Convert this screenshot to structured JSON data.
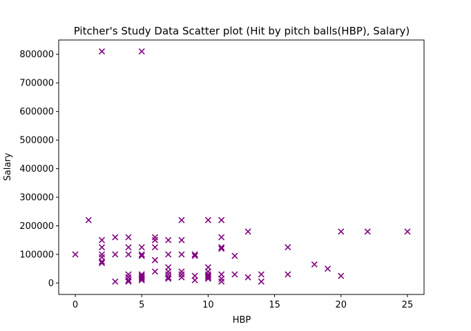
{
  "chart_data": {
    "type": "scatter",
    "title": "Pitcher's Study Data Scatter plot (Hit by pitch balls(HBP), Salary)",
    "xlabel": "HBP",
    "ylabel": "Salary",
    "xlim": [
      -1.25,
      26.25
    ],
    "ylim": [
      -40000,
      850000
    ],
    "x_ticks": [
      0,
      5,
      10,
      15,
      20,
      25
    ],
    "y_ticks": [
      0,
      100000,
      200000,
      300000,
      400000,
      500000,
      600000,
      700000,
      800000
    ],
    "x_tick_labels": [
      "0",
      "5",
      "10",
      "15",
      "20",
      "25"
    ],
    "y_tick_labels": [
      "0",
      "100000",
      "200000",
      "300000",
      "400000",
      "500000",
      "600000",
      "700000",
      "800000"
    ],
    "marker": "x",
    "color": "#800080",
    "grid": false,
    "points": [
      [
        0,
        100000
      ],
      [
        1,
        220000
      ],
      [
        2,
        810000
      ],
      [
        2,
        150000
      ],
      [
        2,
        125000
      ],
      [
        2,
        100000
      ],
      [
        2,
        90000
      ],
      [
        2,
        75000
      ],
      [
        2,
        70000
      ],
      [
        3,
        160000
      ],
      [
        3,
        100000
      ],
      [
        3,
        5000
      ],
      [
        4,
        160000
      ],
      [
        4,
        125000
      ],
      [
        4,
        100000
      ],
      [
        4,
        30000
      ],
      [
        4,
        20000
      ],
      [
        4,
        10000
      ],
      [
        4,
        5000
      ],
      [
        5,
        810000
      ],
      [
        5,
        125000
      ],
      [
        5,
        100000
      ],
      [
        5,
        95000
      ],
      [
        5,
        30000
      ],
      [
        5,
        25000
      ],
      [
        5,
        20000
      ],
      [
        5,
        15000
      ],
      [
        5,
        10000
      ],
      [
        6,
        160000
      ],
      [
        6,
        150000
      ],
      [
        6,
        125000
      ],
      [
        6,
        80000
      ],
      [
        6,
        40000
      ],
      [
        7,
        150000
      ],
      [
        7,
        100000
      ],
      [
        7,
        55000
      ],
      [
        7,
        40000
      ],
      [
        7,
        30000
      ],
      [
        7,
        20000
      ],
      [
        7,
        15000
      ],
      [
        8,
        220000
      ],
      [
        8,
        150000
      ],
      [
        8,
        100000
      ],
      [
        8,
        40000
      ],
      [
        8,
        30000
      ],
      [
        8,
        20000
      ],
      [
        9,
        100000
      ],
      [
        9,
        95000
      ],
      [
        9,
        25000
      ],
      [
        9,
        10000
      ],
      [
        10,
        220000
      ],
      [
        10,
        55000
      ],
      [
        10,
        40000
      ],
      [
        10,
        30000
      ],
      [
        10,
        25000
      ],
      [
        10,
        20000
      ],
      [
        10,
        15000
      ],
      [
        11,
        220000
      ],
      [
        11,
        160000
      ],
      [
        11,
        125000
      ],
      [
        11,
        120000
      ],
      [
        11,
        30000
      ],
      [
        11,
        15000
      ],
      [
        11,
        5000
      ],
      [
        12,
        95000
      ],
      [
        12,
        30000
      ],
      [
        13,
        180000
      ],
      [
        13,
        20000
      ],
      [
        14,
        30000
      ],
      [
        14,
        5000
      ],
      [
        16,
        125000
      ],
      [
        16,
        30000
      ],
      [
        18,
        65000
      ],
      [
        19,
        50000
      ],
      [
        20,
        180000
      ],
      [
        20,
        25000
      ],
      [
        22,
        180000
      ],
      [
        25,
        180000
      ]
    ]
  }
}
